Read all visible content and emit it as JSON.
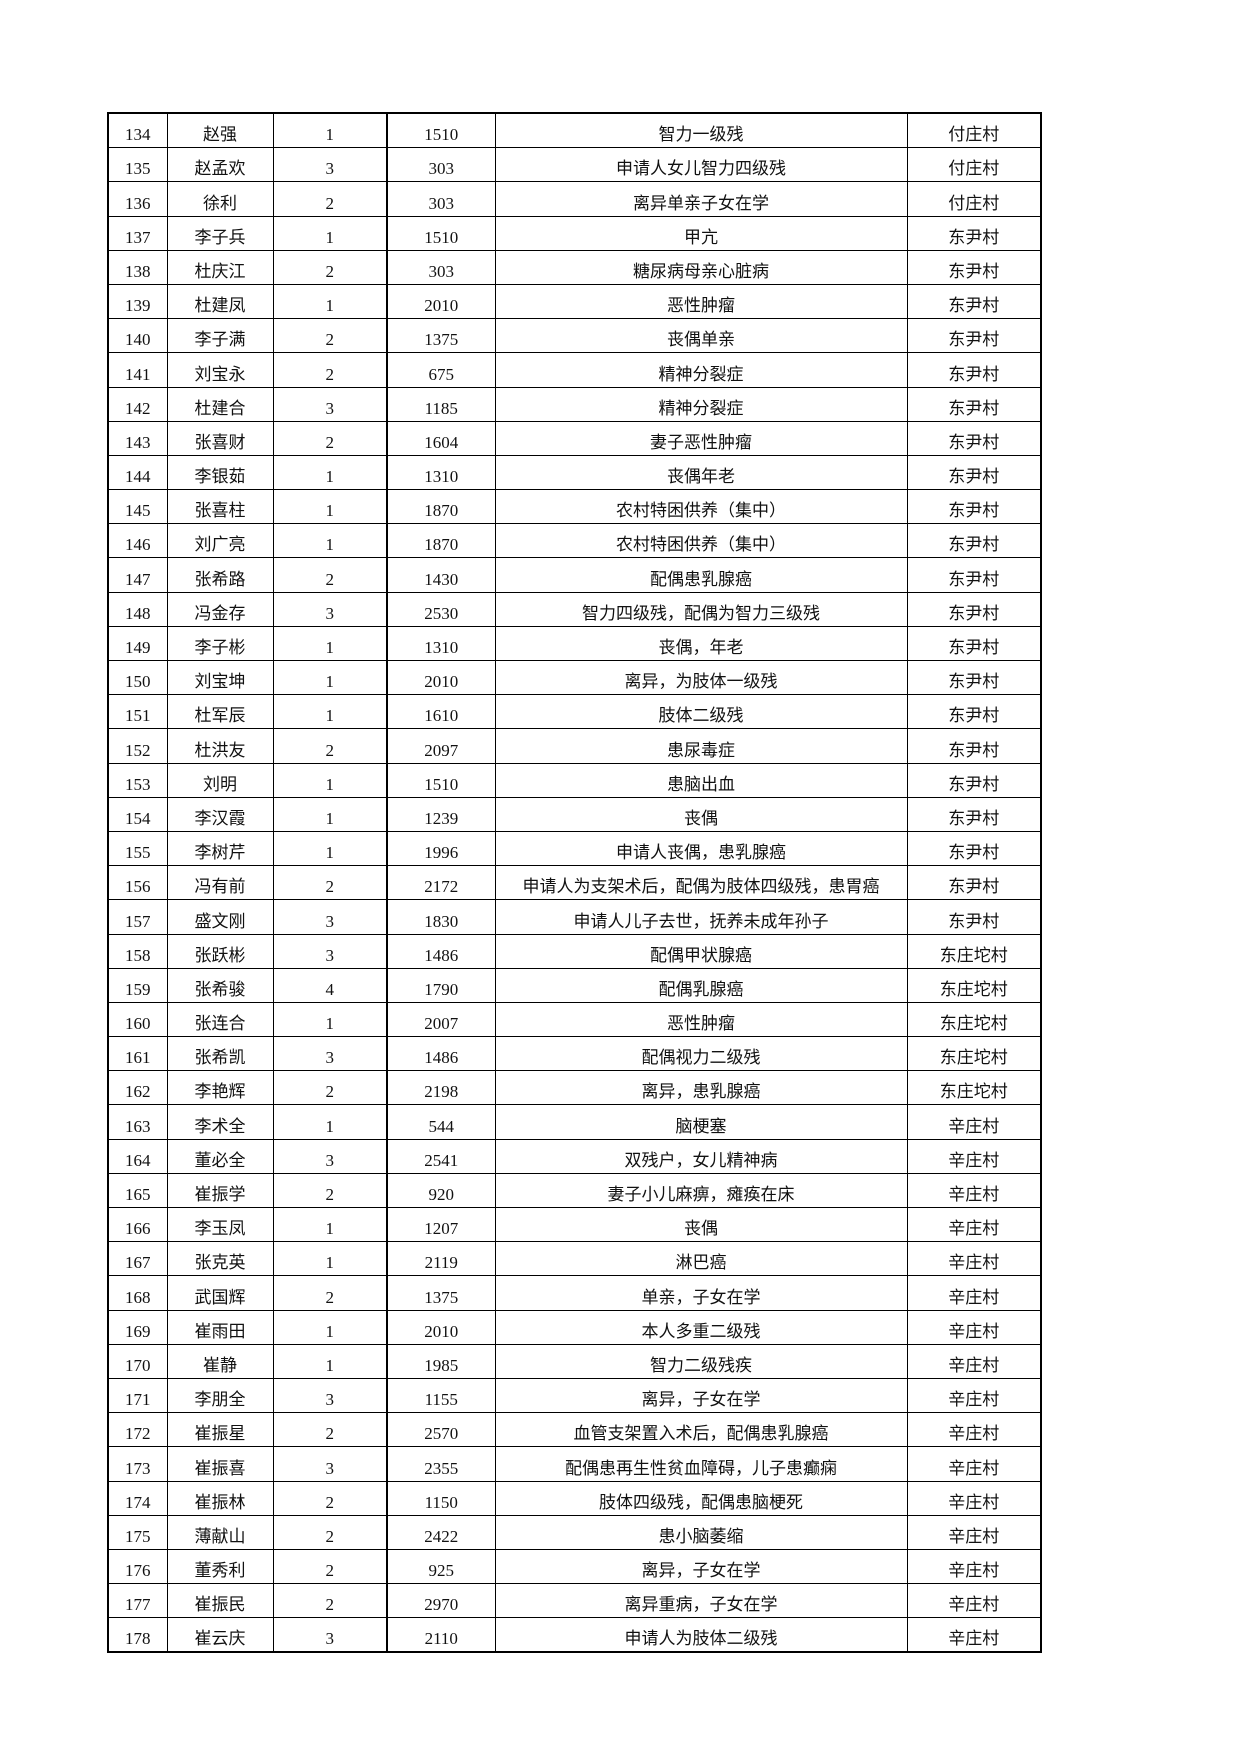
{
  "table": {
    "rows": [
      [
        "134",
        "赵强",
        "1",
        "1510",
        "智力一级残",
        "付庄村"
      ],
      [
        "135",
        "赵孟欢",
        "3",
        "303",
        "申请人女儿智力四级残",
        "付庄村"
      ],
      [
        "136",
        "徐利",
        "2",
        "303",
        "离异单亲子女在学",
        "付庄村"
      ],
      [
        "137",
        "李子兵",
        "1",
        "1510",
        "甲亢",
        "东尹村"
      ],
      [
        "138",
        "杜庆江",
        "2",
        "303",
        "糖尿病母亲心脏病",
        "东尹村"
      ],
      [
        "139",
        "杜建凤",
        "1",
        "2010",
        "恶性肿瘤",
        "东尹村"
      ],
      [
        "140",
        "李子满",
        "2",
        "1375",
        "丧偶单亲",
        "东尹村"
      ],
      [
        "141",
        "刘宝永",
        "2",
        "675",
        "精神分裂症",
        "东尹村"
      ],
      [
        "142",
        "杜建合",
        "3",
        "1185",
        "精神分裂症",
        "东尹村"
      ],
      [
        "143",
        "张喜财",
        "2",
        "1604",
        "妻子恶性肿瘤",
        "东尹村"
      ],
      [
        "144",
        "李银茹",
        "1",
        "1310",
        "丧偶年老",
        "东尹村"
      ],
      [
        "145",
        "张喜柱",
        "1",
        "1870",
        "农村特困供养（集中）",
        "东尹村"
      ],
      [
        "146",
        "刘广亮",
        "1",
        "1870",
        "农村特困供养（集中）",
        "东尹村"
      ],
      [
        "147",
        "张希路",
        "2",
        "1430",
        "配偶患乳腺癌",
        "东尹村"
      ],
      [
        "148",
        "冯金存",
        "3",
        "2530",
        "智力四级残，配偶为智力三级残",
        "东尹村"
      ],
      [
        "149",
        "李子彬",
        "1",
        "1310",
        "丧偶，年老",
        "东尹村"
      ],
      [
        "150",
        "刘宝坤",
        "1",
        "2010",
        "离异，为肢体一级残",
        "东尹村"
      ],
      [
        "151",
        "杜军辰",
        "1",
        "1610",
        "肢体二级残",
        "东尹村"
      ],
      [
        "152",
        "杜洪友",
        "2",
        "2097",
        "患尿毒症",
        "东尹村"
      ],
      [
        "153",
        "刘明",
        "1",
        "1510",
        "患脑出血",
        "东尹村"
      ],
      [
        "154",
        "李汉霞",
        "1",
        "1239",
        "丧偶",
        "东尹村"
      ],
      [
        "155",
        "李树芹",
        "1",
        "1996",
        "申请人丧偶，患乳腺癌",
        "东尹村"
      ],
      [
        "156",
        "冯有前",
        "2",
        "2172",
        "申请人为支架术后，配偶为肢体四级残，患胃癌",
        "东尹村"
      ],
      [
        "157",
        "盛文刚",
        "3",
        "1830",
        "申请人儿子去世，抚养未成年孙子",
        "东尹村"
      ],
      [
        "158",
        "张跃彬",
        "3",
        "1486",
        "配偶甲状腺癌",
        "东庄坨村"
      ],
      [
        "159",
        "张希骏",
        "4",
        "1790",
        "配偶乳腺癌",
        "东庄坨村"
      ],
      [
        "160",
        "张连合",
        "1",
        "2007",
        "恶性肿瘤",
        "东庄坨村"
      ],
      [
        "161",
        "张希凯",
        "3",
        "1486",
        "配偶视力二级残",
        "东庄坨村"
      ],
      [
        "162",
        "李艳辉",
        "2",
        "2198",
        "离异，患乳腺癌",
        "东庄坨村"
      ],
      [
        "163",
        "李术全",
        "1",
        "544",
        "脑梗塞",
        "辛庄村"
      ],
      [
        "164",
        "董必全",
        "3",
        "2541",
        "双残户，女儿精神病",
        "辛庄村"
      ],
      [
        "165",
        "崔振学",
        "2",
        "920",
        "妻子小儿麻痹，瘫痪在床",
        "辛庄村"
      ],
      [
        "166",
        "李玉凤",
        "1",
        "1207",
        "丧偶",
        "辛庄村"
      ],
      [
        "167",
        "张克英",
        "1",
        "2119",
        "淋巴癌",
        "辛庄村"
      ],
      [
        "168",
        "武国辉",
        "2",
        "1375",
        "单亲，子女在学",
        "辛庄村"
      ],
      [
        "169",
        "崔雨田",
        "1",
        "2010",
        "本人多重二级残",
        "辛庄村"
      ],
      [
        "170",
        "崔静",
        "1",
        "1985",
        "智力二级残疾",
        "辛庄村"
      ],
      [
        "171",
        "李朋全",
        "3",
        "1155",
        "离异，子女在学",
        "辛庄村"
      ],
      [
        "172",
        "崔振星",
        "2",
        "2570",
        "血管支架置入术后，配偶患乳腺癌",
        "辛庄村"
      ],
      [
        "173",
        "崔振喜",
        "3",
        "2355",
        "配偶患再生性贫血障碍，儿子患癫痫",
        "辛庄村"
      ],
      [
        "174",
        "崔振林",
        "2",
        "1150",
        "肢体四级残，配偶患脑梗死",
        "辛庄村"
      ],
      [
        "175",
        "薄献山",
        "2",
        "2422",
        "患小脑萎缩",
        "辛庄村"
      ],
      [
        "176",
        "董秀利",
        "2",
        "925",
        "离异，子女在学",
        "辛庄村"
      ],
      [
        "177",
        "崔振民",
        "2",
        "2970",
        "离异重病，子女在学",
        "辛庄村"
      ],
      [
        "178",
        "崔云庆",
        "3",
        "2110",
        "申请人为肢体二级残",
        "辛庄村"
      ]
    ]
  }
}
